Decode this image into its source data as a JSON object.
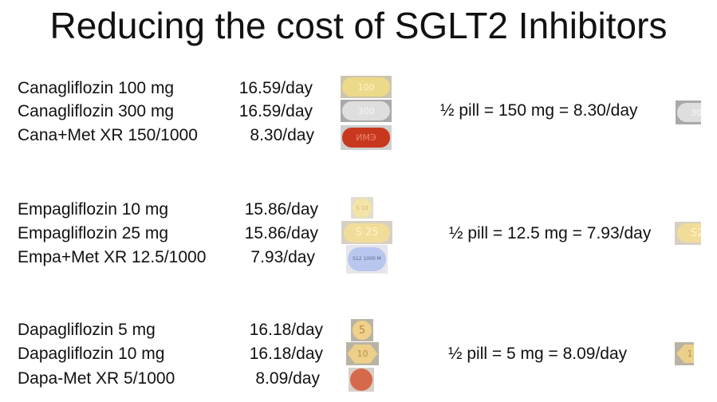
{
  "title": "Reducing the cost of SGLT2 Inhibitors",
  "groups": [
    {
      "rows": [
        {
          "drug": "Canagliflozin 100 mg",
          "cost": "16.59/day",
          "pill_imprint": "100",
          "pill_color": "#ecd98a"
        },
        {
          "drug": "Canagliflozin 300 mg",
          "cost": "16.59/day",
          "pill_imprint": "300",
          "pill_color": "#d9d9d9"
        },
        {
          "drug": "Cana+Met XR 150/1000",
          "cost": "8.30/day",
          "pill_imprint": "ИМЭ",
          "pill_color": "#c8381f"
        }
      ],
      "half_pill": "½ pill = 150 mg = 8.30/day",
      "half_imprint": "30"
    },
    {
      "rows": [
        {
          "drug": "Empagliflozin 10 mg",
          "cost": "15.86/day",
          "pill_imprint": "S 10",
          "pill_color": "#f4e4a8"
        },
        {
          "drug": "Empagliflozin 25 mg",
          "cost": "15.86/day",
          "pill_imprint": "S 25",
          "pill_color": "#f2dc9a"
        },
        {
          "drug": "Empa+Met XR 12.5/1000",
          "cost": "7.93/day",
          "pill_imprint": "S12 1000 M",
          "pill_color": "#b9c6ee"
        }
      ],
      "half_pill": "½ pill = 12.5 mg = 7.93/day",
      "half_imprint": "S2"
    },
    {
      "rows": [
        {
          "drug": "Dapagliflozin 5 mg",
          "cost": "16.18/day",
          "pill_imprint": "5",
          "pill_color": "#f0d08a"
        },
        {
          "drug": "Dapagliflozin 10 mg",
          "cost": "16.18/day",
          "pill_imprint": "10",
          "pill_color": "#ecd08a"
        },
        {
          "drug": "Dapa-Met XR 5/1000",
          "cost": "8.09/day",
          "pill_imprint": "",
          "pill_color": "#d6694c"
        }
      ],
      "half_pill": "½ pill = 5 mg = 8.09/day",
      "half_imprint": "1"
    }
  ]
}
